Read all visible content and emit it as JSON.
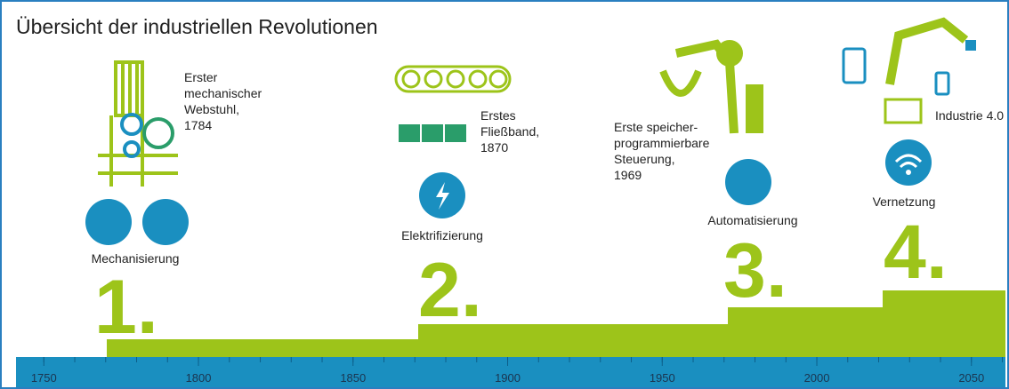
{
  "header": {
    "title": "Übersicht der industriellen Revolutionen"
  },
  "stages": [
    {
      "number": "1.",
      "label": "Mechanisierung",
      "note": [
        "Erster",
        "mechanischer",
        "Webstuhl,",
        "1784"
      ]
    },
    {
      "number": "2.",
      "label": "Elektrifizierung",
      "note": [
        "Erstes",
        "Fließband,",
        "1870"
      ]
    },
    {
      "number": "3.",
      "label": "Automatisierung",
      "note": [
        "Erste speicher-",
        "programmierbare",
        "Steuerung,",
        "1969"
      ]
    },
    {
      "number": "4.",
      "label": "Vernetzung",
      "note": [
        "Industrie 4.0"
      ]
    }
  ],
  "timeline": {
    "xlim": [
      1741,
      2061
    ],
    "ticks": [
      1750,
      1800,
      1850,
      1900,
      1950,
      2000,
      2050
    ]
  }
}
